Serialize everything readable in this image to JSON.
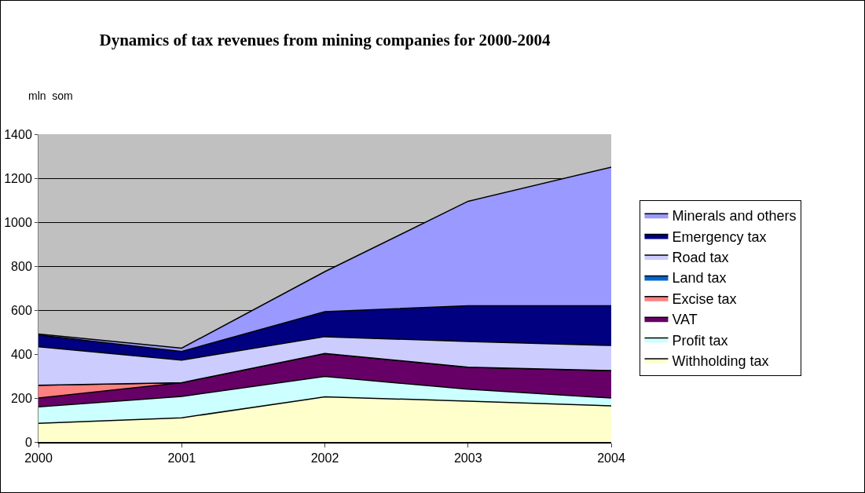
{
  "chart_data": {
    "type": "area",
    "stacked": true,
    "title": "Dynamics of tax revenues from mining companies for 2000-2004",
    "ylabel": "mln  som",
    "categories": [
      "2000",
      "2001",
      "2002",
      "2003",
      "2004"
    ],
    "series": [
      {
        "name": "Withholding tax",
        "color": "#ffffcc",
        "values": [
          85,
          110,
          205,
          186,
          164
        ]
      },
      {
        "name": "Profit tax",
        "color": "#ccffff",
        "values": [
          75,
          97,
          93,
          54,
          36
        ]
      },
      {
        "name": "VAT",
        "color": "#660066",
        "values": [
          40,
          63,
          105,
          100,
          125
        ]
      },
      {
        "name": "Excise tax",
        "color": "#ff8080",
        "values": [
          58,
          0,
          0,
          0,
          0
        ]
      },
      {
        "name": "Land tax",
        "color": "#0066cc",
        "values": [
          null,
          null,
          null,
          null,
          null
        ]
      },
      {
        "name": "Road tax",
        "color": "#ccccff",
        "values": [
          175,
          102,
          76,
          117,
          114
        ]
      },
      {
        "name": "Emergency tax",
        "color": "#000080",
        "values": [
          54,
          40,
          114,
          163,
          181
        ]
      },
      {
        "name": "Minerals and others",
        "color": "#9999ff",
        "values": [
          4,
          15,
          182,
          475,
          630
        ]
      }
    ],
    "ylim": [
      0,
      1400
    ],
    "yticks": [
      0,
      200,
      400,
      600,
      800,
      1000,
      1200,
      1400
    ],
    "grid": "y",
    "legend": "right",
    "marker": "none"
  }
}
